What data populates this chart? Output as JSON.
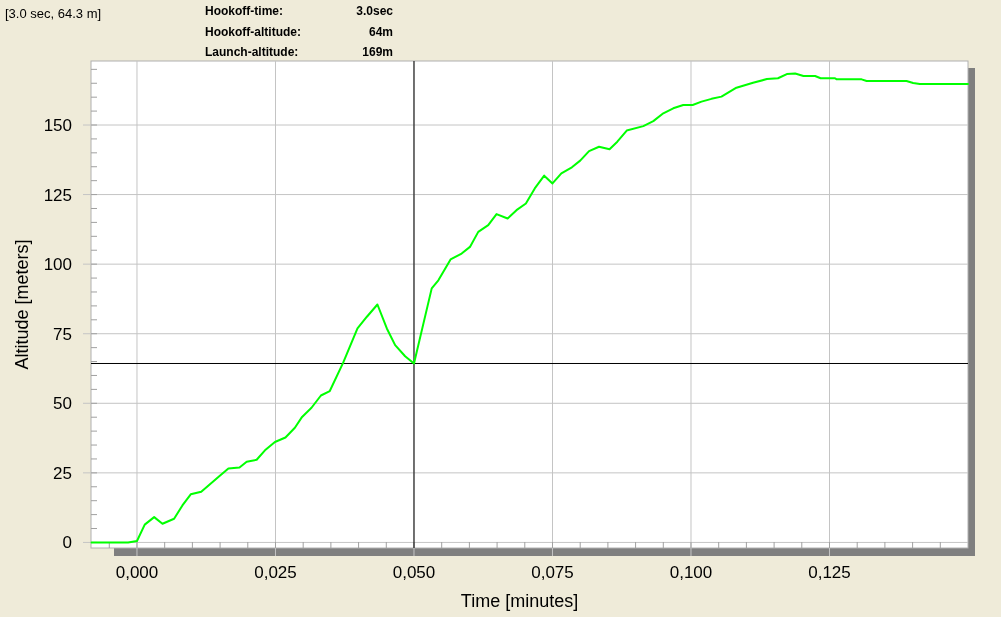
{
  "chart_data": {
    "type": "line",
    "xlabel": "Time [minutes]",
    "ylabel": "Altitude [meters]",
    "annotations": [
      "[3.0 sec, 64.3 m]",
      "Hookoff-time:",
      "3.0sec",
      "Hookoff-altitude:",
      "64m",
      "Launch-altitude:",
      "169m"
    ],
    "x": [
      -0.0082,
      -0.0016,
      0.0,
      0.0014,
      0.0031,
      0.0046,
      0.0067,
      0.0082,
      0.0097,
      0.0116,
      0.0149,
      0.0165,
      0.0185,
      0.0198,
      0.0216,
      0.0231,
      0.0249,
      0.0268,
      0.0285,
      0.0298,
      0.0315,
      0.0332,
      0.0348,
      0.0372,
      0.0398,
      0.0415,
      0.0434,
      0.0451,
      0.0466,
      0.0484,
      0.05,
      0.0532,
      0.0544,
      0.0566,
      0.0586,
      0.0601,
      0.0616,
      0.0634,
      0.0649,
      0.0669,
      0.0685,
      0.0702,
      0.0718,
      0.0735,
      0.075,
      0.0766,
      0.0785,
      0.08,
      0.0816,
      0.0834,
      0.0853,
      0.0867,
      0.0884,
      0.0914,
      0.0932,
      0.095,
      0.0968,
      0.0986,
      0.1003,
      0.1019,
      0.1037,
      0.1055,
      0.1082,
      0.1112,
      0.1137,
      0.1157,
      0.1173,
      0.1188,
      0.1203,
      0.1224,
      0.1234,
      0.126,
      0.1263,
      0.1308,
      0.1317,
      0.1389,
      0.1401,
      0.1413,
      0.15
    ],
    "series": [
      {
        "color": "#00ff00",
        "values": [
          0,
          0,
          0.5,
          6.4,
          9.1,
          6.7,
          8.5,
          13.3,
          17.3,
          18.2,
          23.9,
          26.6,
          26.9,
          29.0,
          29.7,
          33.1,
          36.1,
          37.7,
          41.2,
          45.1,
          48.4,
          52.8,
          54.4,
          64.5,
          76.9,
          81.1,
          85.5,
          76.9,
          70.9,
          66.9,
          64.3,
          91.3,
          94.2,
          101.7,
          103.8,
          106.2,
          111.6,
          114.0,
          118.0,
          116.4,
          119.4,
          121.8,
          127.2,
          131.8,
          129.0,
          132.6,
          134.8,
          137.2,
          140.6,
          142.2,
          141.3,
          144.0,
          148.0,
          149.6,
          151.4,
          154.2,
          156.0,
          157.2,
          157.2,
          158.4,
          159.4,
          160.2,
          163.4,
          165.2,
          166.5,
          166.8,
          168.3,
          168.5,
          167.6,
          167.6,
          166.8,
          166.8,
          166.4,
          166.4,
          165.8,
          165.8,
          165.1,
          164.7,
          164.7
        ]
      }
    ],
    "xlim": [
      -0.0083,
      0.15
    ],
    "ylim": [
      -2,
      173
    ],
    "xticks": [
      {
        "value": -0.005,
        "label": null
      },
      {
        "value": 0,
        "label": "0,000"
      },
      {
        "value": 0.005,
        "label": null
      },
      {
        "value": 0.01,
        "label": null
      },
      {
        "value": 0.015,
        "label": null
      },
      {
        "value": 0.02,
        "label": null
      },
      {
        "value": 0.025,
        "label": "0,025"
      },
      {
        "value": 0.03,
        "label": null
      },
      {
        "value": 0.035,
        "label": null
      },
      {
        "value": 0.04,
        "label": null
      },
      {
        "value": 0.045,
        "label": null
      },
      {
        "value": 0.05,
        "label": "0,050"
      },
      {
        "value": 0.055,
        "label": null
      },
      {
        "value": 0.06,
        "label": null
      },
      {
        "value": 0.065,
        "label": null
      },
      {
        "value": 0.07,
        "label": null
      },
      {
        "value": 0.075,
        "label": "0,075"
      },
      {
        "value": 0.08,
        "label": null
      },
      {
        "value": 0.085,
        "label": null
      },
      {
        "value": 0.09,
        "label": null
      },
      {
        "value": 0.095,
        "label": null
      },
      {
        "value": 0.1,
        "label": "0,100"
      },
      {
        "value": 0.105,
        "label": null
      },
      {
        "value": 0.11,
        "label": null
      },
      {
        "value": 0.115,
        "label": null
      },
      {
        "value": 0.12,
        "label": null
      },
      {
        "value": 0.125,
        "label": "0,125"
      },
      {
        "value": 0.13,
        "label": null
      },
      {
        "value": 0.135,
        "label": null
      },
      {
        "value": 0.14,
        "label": null
      },
      {
        "value": 0.145,
        "label": null
      }
    ],
    "yticks": [
      0,
      {
        "value": 5,
        "label": null
      },
      {
        "value": 10,
        "label": null
      },
      {
        "value": 15,
        "label": null
      },
      {
        "value": 20,
        "label": null
      },
      25,
      {
        "value": 30,
        "label": null
      },
      {
        "value": 35,
        "label": null
      },
      {
        "value": 40,
        "label": null
      },
      {
        "value": 45,
        "label": null
      },
      50,
      {
        "value": 55,
        "label": null
      },
      {
        "value": 60,
        "label": null
      },
      {
        "value": 65,
        "label": null
      },
      {
        "value": 70,
        "label": null
      },
      75,
      {
        "value": 80,
        "label": null
      },
      {
        "value": 85,
        "label": null
      },
      {
        "value": 90,
        "label": null
      },
      {
        "value": 95,
        "label": null
      },
      100,
      {
        "value": 105,
        "label": null
      },
      {
        "value": 110,
        "label": null
      },
      {
        "value": 115,
        "label": null
      },
      {
        "value": 120,
        "label": null
      },
      125,
      {
        "value": 130,
        "label": null
      },
      {
        "value": 135,
        "label": null
      },
      {
        "value": 140,
        "label": null
      },
      {
        "value": 145,
        "label": null
      },
      150,
      {
        "value": 155,
        "label": null
      },
      {
        "value": 160,
        "label": null
      },
      {
        "value": 165,
        "label": null
      },
      {
        "value": 170,
        "label": null
      }
    ],
    "grid": true,
    "ref_lines": [
      {
        "axis": "x",
        "value": 0.05,
        "color": "#000000"
      },
      {
        "axis": "y",
        "value": 64.3,
        "color": "#000000"
      }
    ]
  }
}
